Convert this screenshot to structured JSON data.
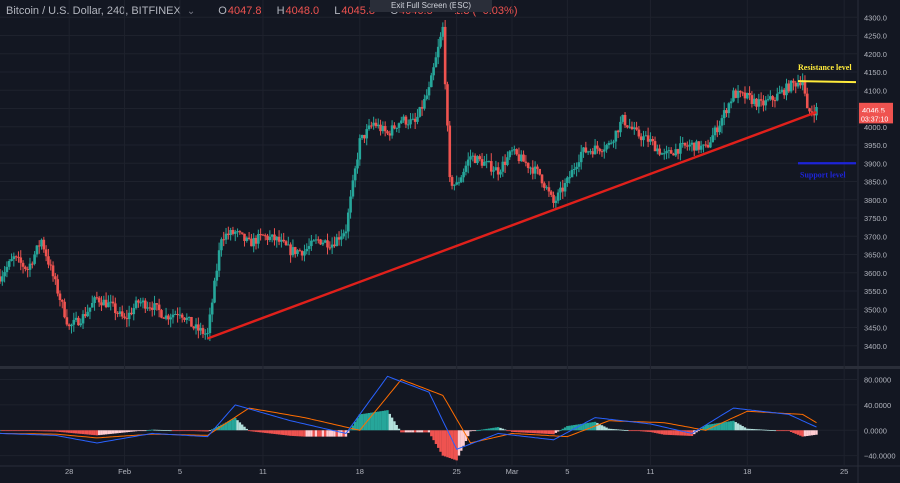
{
  "header": {
    "symbol": "Bitcoin / U.S. Dollar, 240, BITFINEX",
    "chevron": "⌄",
    "o_label": "O",
    "o_value": "4047.8",
    "h_label": "H",
    "h_value": "4048.0",
    "l_label": "L",
    "l_value": "4045.8",
    "c_label": "C",
    "c_value": "4046.5",
    "change": "−1.3 (−0.03%)"
  },
  "exit_button": "Exit Full Screen (ESC)",
  "colors": {
    "background": "#131722",
    "up": "#26a69a",
    "down": "#ef5350",
    "trendline": "#e0201b",
    "resistance": "#ffeb3b",
    "support": "#1e24d8",
    "macd": "#2962ff",
    "signal": "#ff6d00"
  },
  "chart_data": [
    {
      "type": "candlestick",
      "title": "Bitcoin / U.S. Dollar, 240, BITFINEX",
      "ylim": [
        3350,
        4320
      ],
      "y_ticks": [
        3400,
        3450,
        3500,
        3550,
        3600,
        3650,
        3700,
        3750,
        3800,
        3850,
        3900,
        3950,
        4000,
        4050,
        4100,
        4150,
        4200,
        4250,
        4300
      ],
      "y_tick_labels": [
        "3400.0",
        "3450.0",
        "3500.0",
        "3550.0",
        "3600.0",
        "3650.0",
        "3700.0",
        "3750.0",
        "3800.0",
        "3850.0",
        "3900.0",
        "3950.0",
        "4000.0",
        "4050.0",
        "4100.0",
        "4150.0",
        "4200.0",
        "4250.0",
        "4300.0"
      ],
      "x_tick_labels": [
        "28",
        "Feb",
        "5",
        "11",
        "18",
        "25",
        "Mar",
        "5",
        "11",
        "18",
        "25"
      ],
      "x_range": [
        "2019-01-23",
        "2019-03-26"
      ],
      "close_path": [
        {
          "t": "2019-01-23",
          "v": 3590
        },
        {
          "t": "2019-01-24",
          "v": 3640
        },
        {
          "t": "2019-01-25",
          "v": 3610
        },
        {
          "t": "2019-01-26",
          "v": 3690
        },
        {
          "t": "2019-01-27",
          "v": 3570
        },
        {
          "t": "2019-01-28",
          "v": 3450
        },
        {
          "t": "2019-01-29",
          "v": 3480
        },
        {
          "t": "2019-01-30",
          "v": 3530
        },
        {
          "t": "2019-01-31",
          "v": 3510
        },
        {
          "t": "2019-02-01",
          "v": 3470
        },
        {
          "t": "2019-02-02",
          "v": 3520
        },
        {
          "t": "2019-02-03",
          "v": 3510
        },
        {
          "t": "2019-02-04",
          "v": 3480
        },
        {
          "t": "2019-02-05",
          "v": 3495
        },
        {
          "t": "2019-02-06",
          "v": 3450
        },
        {
          "t": "2019-02-07",
          "v": 3430
        },
        {
          "t": "2019-02-08",
          "v": 3700
        },
        {
          "t": "2019-02-09",
          "v": 3710
        },
        {
          "t": "2019-02-10",
          "v": 3680
        },
        {
          "t": "2019-02-11",
          "v": 3700
        },
        {
          "t": "2019-02-12",
          "v": 3690
        },
        {
          "t": "2019-02-13",
          "v": 3660
        },
        {
          "t": "2019-02-14",
          "v": 3660
        },
        {
          "t": "2019-02-15",
          "v": 3690
        },
        {
          "t": "2019-02-16",
          "v": 3680
        },
        {
          "t": "2019-02-17",
          "v": 3720
        },
        {
          "t": "2019-02-18",
          "v": 3960
        },
        {
          "t": "2019-02-19",
          "v": 4010
        },
        {
          "t": "2019-02-20",
          "v": 3980
        },
        {
          "t": "2019-02-21",
          "v": 4020
        },
        {
          "t": "2019-02-22",
          "v": 4010
        },
        {
          "t": "2019-02-23",
          "v": 4100
        },
        {
          "t": "2019-02-24",
          "v": 4270
        },
        {
          "t": "2019-02-24T12",
          "v": 3850
        },
        {
          "t": "2019-02-25",
          "v": 3840
        },
        {
          "t": "2019-02-26",
          "v": 3920
        },
        {
          "t": "2019-02-27",
          "v": 3900
        },
        {
          "t": "2019-02-28",
          "v": 3880
        },
        {
          "t": "2019-03-01",
          "v": 3930
        },
        {
          "t": "2019-03-02",
          "v": 3900
        },
        {
          "t": "2019-03-03",
          "v": 3870
        },
        {
          "t": "2019-03-04",
          "v": 3790
        },
        {
          "t": "2019-03-05",
          "v": 3850
        },
        {
          "t": "2019-03-06",
          "v": 3930
        },
        {
          "t": "2019-03-07",
          "v": 3940
        },
        {
          "t": "2019-03-08",
          "v": 3950
        },
        {
          "t": "2019-03-09",
          "v": 4020
        },
        {
          "t": "2019-03-10",
          "v": 3980
        },
        {
          "t": "2019-03-11",
          "v": 3960
        },
        {
          "t": "2019-03-12",
          "v": 3920
        },
        {
          "t": "2019-03-13",
          "v": 3940
        },
        {
          "t": "2019-03-14",
          "v": 3950
        },
        {
          "t": "2019-03-15",
          "v": 3940
        },
        {
          "t": "2019-03-16",
          "v": 4010
        },
        {
          "t": "2019-03-17",
          "v": 4090
        },
        {
          "t": "2019-03-18",
          "v": 4080
        },
        {
          "t": "2019-03-19",
          "v": 4060
        },
        {
          "t": "2019-03-20",
          "v": 4080
        },
        {
          "t": "2019-03-21",
          "v": 4110
        },
        {
          "t": "2019-03-22",
          "v": 4130
        },
        {
          "t": "2019-03-22T08",
          "v": 4040
        },
        {
          "t": "2019-03-23",
          "v": 4046.5
        }
      ],
      "trendline": {
        "from": {
          "t": "2019-02-07",
          "v": 3420
        },
        "to": {
          "t": "2019-03-23",
          "v": 4040
        }
      },
      "resistance_level": {
        "label": "Resistance level",
        "value": 4125
      },
      "support_level": {
        "label": "Support level",
        "value": 3900
      },
      "price_labels": [
        {
          "text": "4046.5",
          "value": 4046.5
        },
        {
          "text": "03:37:10",
          "value": 4023
        }
      ]
    },
    {
      "type": "histogram+line",
      "title": "MACD",
      "ylim": [
        -50,
        95
      ],
      "y_ticks": [
        80,
        40,
        0,
        -40
      ],
      "y_tick_labels": [
        "80.0000",
        "40.0000",
        "0.0000",
        "−40.0000"
      ],
      "macd_path": [
        {
          "t": "2019-01-23",
          "v": -5
        },
        {
          "t": "2019-01-27",
          "v": -8
        },
        {
          "t": "2019-01-30",
          "v": -20
        },
        {
          "t": "2019-02-03",
          "v": -5
        },
        {
          "t": "2019-02-07",
          "v": -10
        },
        {
          "t": "2019-02-09",
          "v": 40
        },
        {
          "t": "2019-02-13",
          "v": 15
        },
        {
          "t": "2019-02-17",
          "v": -5
        },
        {
          "t": "2019-02-20",
          "v": 85
        },
        {
          "t": "2019-02-23",
          "v": 60
        },
        {
          "t": "2019-02-25",
          "v": -30
        },
        {
          "t": "2019-02-28",
          "v": -5
        },
        {
          "t": "2019-03-04",
          "v": -15
        },
        {
          "t": "2019-03-07",
          "v": 20
        },
        {
          "t": "2019-03-11",
          "v": 10
        },
        {
          "t": "2019-03-14",
          "v": -5
        },
        {
          "t": "2019-03-17",
          "v": 35
        },
        {
          "t": "2019-03-21",
          "v": 25
        },
        {
          "t": "2019-03-23",
          "v": 5
        }
      ],
      "signal_path": [
        {
          "t": "2019-01-23",
          "v": -5
        },
        {
          "t": "2019-01-27",
          "v": -6
        },
        {
          "t": "2019-01-30",
          "v": -12
        },
        {
          "t": "2019-02-03",
          "v": -6
        },
        {
          "t": "2019-02-07",
          "v": -8
        },
        {
          "t": "2019-02-10",
          "v": 35
        },
        {
          "t": "2019-02-14",
          "v": 20
        },
        {
          "t": "2019-02-18",
          "v": 0
        },
        {
          "t": "2019-02-21",
          "v": 80
        },
        {
          "t": "2019-02-24",
          "v": 55
        },
        {
          "t": "2019-02-26",
          "v": -20
        },
        {
          "t": "2019-03-01",
          "v": -5
        },
        {
          "t": "2019-03-05",
          "v": -10
        },
        {
          "t": "2019-03-08",
          "v": 15
        },
        {
          "t": "2019-03-12",
          "v": 12
        },
        {
          "t": "2019-03-15",
          "v": 0
        },
        {
          "t": "2019-03-18",
          "v": 30
        },
        {
          "t": "2019-03-22",
          "v": 25
        },
        {
          "t": "2019-03-23",
          "v": 12
        }
      ]
    }
  ]
}
